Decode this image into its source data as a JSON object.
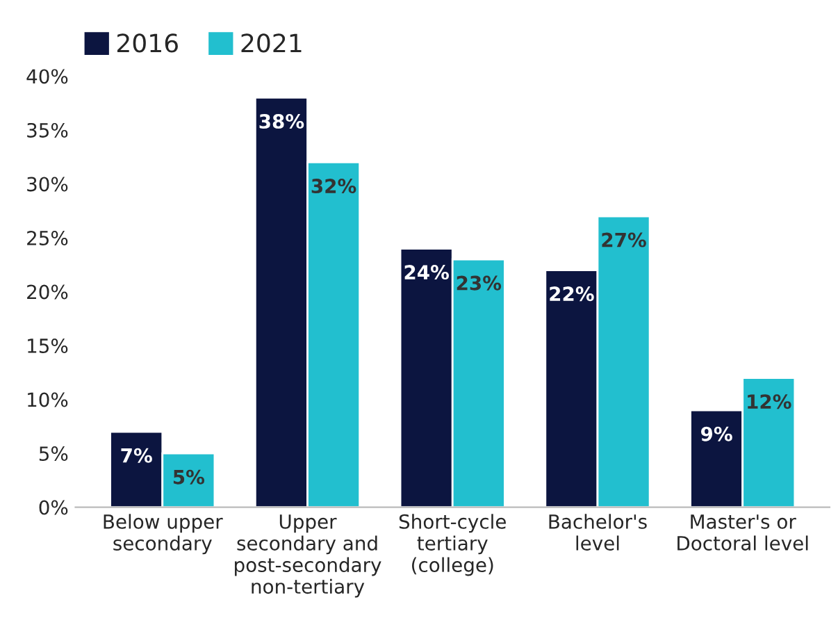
{
  "chart_data": {
    "type": "bar",
    "categories": [
      "Below upper\nsecondary",
      "Upper\nsecondary and\npost-secondary\nnon-tertiary",
      "Short-cycle\ntertiary\n(college)",
      "Bachelor's\nlevel",
      "Master's or\nDoctoral level"
    ],
    "series": [
      {
        "name": "2016",
        "color": "#0c1540",
        "values": [
          7,
          38,
          24,
          22,
          9
        ],
        "value_labels": [
          "7%",
          "38%",
          "24%",
          "22%",
          "9%"
        ]
      },
      {
        "name": "2021",
        "color": "#22bfcf",
        "values": [
          5,
          32,
          23,
          27,
          12
        ],
        "value_labels": [
          "5%",
          "32%",
          "23%",
          "27%",
          "12%"
        ]
      }
    ],
    "ylim": [
      0,
      40
    ],
    "yticks": [
      {
        "value": 0,
        "label": "0%"
      },
      {
        "value": 5,
        "label": "5%"
      },
      {
        "value": 10,
        "label": "10%"
      },
      {
        "value": 15,
        "label": "15%"
      },
      {
        "value": 20,
        "label": "20%"
      },
      {
        "value": 25,
        "label": "25%"
      },
      {
        "value": 30,
        "label": "30%"
      },
      {
        "value": 35,
        "label": "35%"
      },
      {
        "value": 40,
        "label": "40%"
      }
    ],
    "grid": false,
    "legend": "top left"
  }
}
